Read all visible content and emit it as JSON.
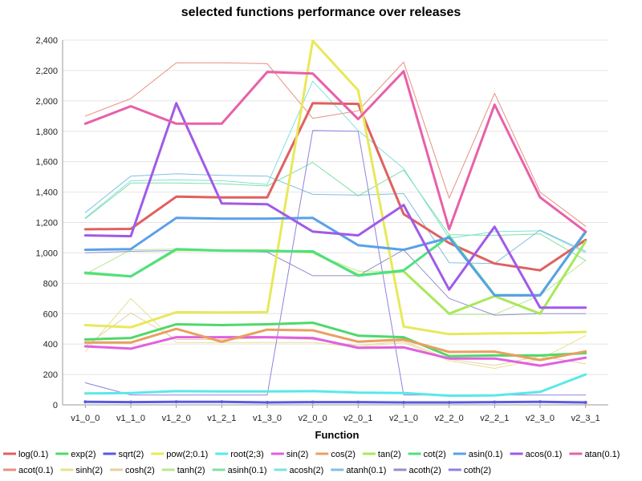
{
  "chart_data": {
    "type": "line",
    "title": "selected functions performance over releases",
    "xlabel": "Function",
    "ylabel": "",
    "ylim": [
      0,
      2400
    ],
    "yticks": [
      0,
      200,
      400,
      600,
      800,
      1000,
      1200,
      1400,
      1600,
      1800,
      2000,
      2200,
      2400
    ],
    "ytick_labels": [
      "0",
      "200",
      "400",
      "600",
      "800",
      "1,000",
      "1,200",
      "1,400",
      "1,600",
      "1,800",
      "2,000",
      "2,200",
      "2,400"
    ],
    "categories": [
      "v1_0_0",
      "v1_1_0",
      "v1_2_0",
      "v1_2_1",
      "v1_3_0",
      "v2_0_0",
      "v2_0_1",
      "v2_1_0",
      "v2_2_0",
      "v2_2_1",
      "v2_3_0",
      "v2_3_1"
    ],
    "grid": "horizontal",
    "legend_position": "bottom",
    "series": [
      {
        "name": "log(0.1)",
        "color": "#e06060",
        "bold": true,
        "values": [
          1155,
          1158,
          1370,
          1365,
          1365,
          1985,
          1980,
          1255,
          1065,
          930,
          885,
          1085
        ]
      },
      {
        "name": "exp(2)",
        "color": "#4fd86a",
        "bold": true,
        "values": [
          430,
          440,
          530,
          525,
          530,
          540,
          455,
          445,
          320,
          325,
          325,
          340
        ]
      },
      {
        "name": "sqrt(2)",
        "color": "#5a5ae0",
        "bold": true,
        "values": [
          20,
          18,
          20,
          20,
          16,
          18,
          18,
          16,
          16,
          18,
          20,
          16
        ]
      },
      {
        "name": "pow(2;0.1)",
        "color": "#e8e85a",
        "bold": true,
        "values": [
          525,
          510,
          610,
          608,
          610,
          2395,
          2070,
          515,
          465,
          470,
          472,
          480
        ]
      },
      {
        "name": "root(2;3)",
        "color": "#5ae8e8",
        "bold": true,
        "values": [
          75,
          78,
          90,
          88,
          88,
          90,
          80,
          78,
          60,
          62,
          85,
          200
        ]
      },
      {
        "name": "sin(2)",
        "color": "#e060e0",
        "bold": true,
        "values": [
          385,
          370,
          445,
          445,
          445,
          440,
          375,
          378,
          305,
          305,
          258,
          310
        ]
      },
      {
        "name": "cos(2)",
        "color": "#e8a060",
        "bold": true,
        "values": [
          410,
          410,
          500,
          415,
          495,
          490,
          415,
          430,
          348,
          350,
          295,
          352
        ]
      },
      {
        "name": "tan(2)",
        "color": "#a8e85a",
        "bold": true,
        "values": [
          865,
          845,
          1020,
          1015,
          1015,
          1005,
          855,
          878,
          600,
          715,
          600,
          1075
        ]
      },
      {
        "name": "cot(2)",
        "color": "#4fe080",
        "bold": true,
        "values": [
          870,
          845,
          1025,
          1015,
          1012,
          1010,
          850,
          885,
          1110,
          722,
          722,
          1135
        ]
      },
      {
        "name": "asin(0.1)",
        "color": "#5aa0e8",
        "bold": true,
        "values": [
          1020,
          1025,
          1230,
          1225,
          1225,
          1230,
          1050,
          1020,
          1100,
          720,
          720,
          1140
        ]
      },
      {
        "name": "acos(0.1)",
        "color": "#a05ae8",
        "bold": true,
        "values": [
          1115,
          1110,
          1985,
          1325,
          1320,
          1140,
          1115,
          1315,
          758,
          1172,
          640,
          640
        ]
      },
      {
        "name": "atan(0.1)",
        "color": "#e860a8",
        "bold": true,
        "values": [
          1850,
          1965,
          1850,
          1850,
          2190,
          2180,
          1880,
          2195,
          1155,
          1975,
          1365,
          1140
        ]
      },
      {
        "name": "acot(0.1)",
        "color": "#e89080",
        "bold": false,
        "values": [
          1900,
          2015,
          2250,
          2250,
          2245,
          1885,
          1935,
          2255,
          1360,
          2050,
          1400,
          1175
        ]
      },
      {
        "name": "sinh(2)",
        "color": "#e8e090",
        "bold": false,
        "values": [
          350,
          700,
          410,
          410,
          410,
          410,
          380,
          410,
          290,
          240,
          300,
          455
        ]
      },
      {
        "name": "cosh(2)",
        "color": "#e8d0a0",
        "bold": false,
        "values": [
          385,
          605,
          430,
          430,
          440,
          430,
          390,
          420,
          300,
          260,
          320,
          270
        ]
      },
      {
        "name": "tanh(2)",
        "color": "#b8e890",
        "bold": false,
        "values": [
          860,
          1020,
          1025,
          1015,
          1015,
          1000,
          880,
          880,
          595,
          595,
          720,
          950
        ]
      },
      {
        "name": "asinh(0.1)",
        "color": "#80e0a0",
        "bold": false,
        "values": [
          1225,
          1460,
          1460,
          1455,
          1440,
          1595,
          1375,
          1545,
          1120,
          1115,
          1125,
          950
        ]
      },
      {
        "name": "acosh(2)",
        "color": "#80e0e0",
        "bold": false,
        "values": [
          1230,
          1475,
          1480,
          1475,
          1450,
          2130,
          1805,
          1555,
          1095,
          1140,
          1145,
          1000
        ]
      },
      {
        "name": "atanh(0.1)",
        "color": "#80c0e0",
        "bold": false,
        "values": [
          1265,
          1505,
          1520,
          1510,
          1505,
          1385,
          1380,
          1390,
          935,
          930,
          1150,
          1010
        ]
      },
      {
        "name": "acoth(2)",
        "color": "#9090c8",
        "bold": false,
        "values": [
          1000,
          1010,
          1015,
          1015,
          1005,
          850,
          850,
          1020,
          700,
          590,
          600,
          600
        ]
      },
      {
        "name": "coth(2)",
        "color": "#9080e0",
        "bold": false,
        "values": [
          145,
          65,
          65,
          65,
          65,
          1805,
          1800,
          65,
          65,
          65,
          65,
          65
        ]
      }
    ]
  }
}
